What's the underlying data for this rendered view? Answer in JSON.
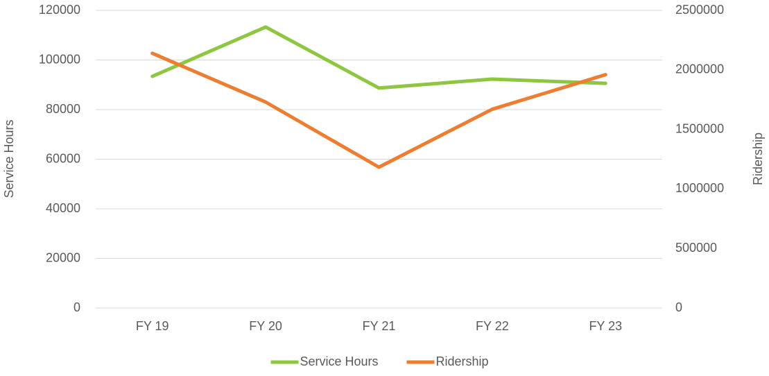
{
  "chart_data": {
    "type": "line",
    "categories": [
      "FY 19",
      "FY 20",
      "FY 21",
      "FY 22",
      "FY 23"
    ],
    "series": [
      {
        "name": "Service Hours",
        "color": "#8dc63f",
        "values": [
          93400,
          113300,
          88700,
          92300,
          90600
        ]
      },
      {
        "name": "Ridership",
        "color": "#ed7d31",
        "axis": "y2",
        "values": [
          2140000,
          1730000,
          1183000,
          1670000,
          1960000
        ]
      }
    ],
    "ylabel": "Service Hours",
    "y2label": "Ridership",
    "ylim": [
      0,
      120000
    ],
    "yticks": [
      0,
      20000,
      40000,
      60000,
      80000,
      100000,
      120000
    ],
    "y2lim": [
      0,
      2500000
    ],
    "y2ticks": [
      0,
      500000,
      1000000,
      1500000,
      2000000,
      2500000
    ],
    "grid": true,
    "legend": "bottom"
  }
}
